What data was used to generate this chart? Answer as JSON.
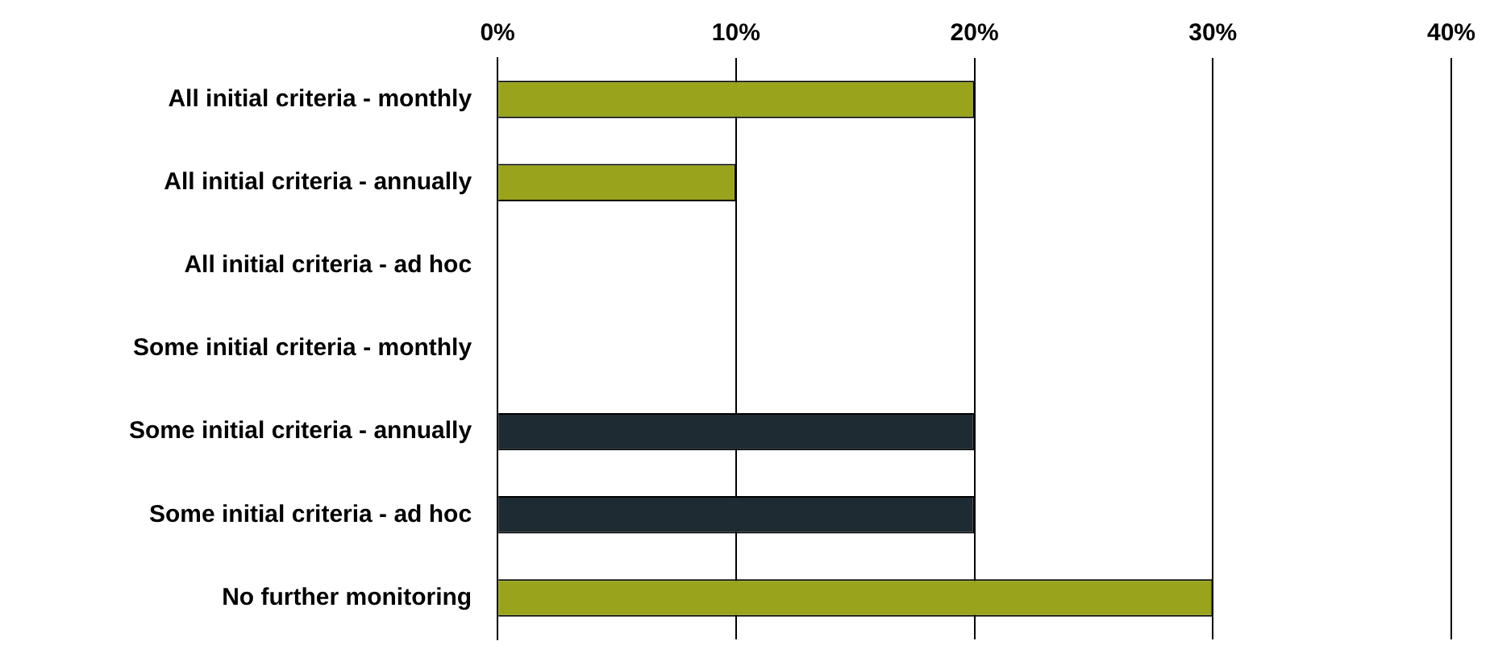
{
  "chart_data": {
    "type": "bar",
    "orientation": "horizontal",
    "categories": [
      "All initial criteria - monthly",
      "All initial criteria - annually",
      "All initial criteria - ad hoc",
      "Some initial criteria - monthly",
      "Some initial criteria - annually",
      "Some initial criteria - ad hoc",
      "No further monitoring"
    ],
    "values": [
      20,
      10,
      0,
      0,
      20,
      20,
      30
    ],
    "colors": [
      "#99a31c",
      "#99a31c",
      "#99a31c",
      "#1f2b33",
      "#1f2b33",
      "#1f2b33",
      "#99a31c"
    ],
    "xlim": [
      0,
      40
    ],
    "xticks": [
      {
        "value": 0,
        "label": "0%"
      },
      {
        "value": 10,
        "label": "10%"
      },
      {
        "value": 20,
        "label": "20%"
      },
      {
        "value": 30,
        "label": "30%"
      },
      {
        "value": 40,
        "label": "40%"
      }
    ],
    "grid": "x",
    "legend": false
  }
}
